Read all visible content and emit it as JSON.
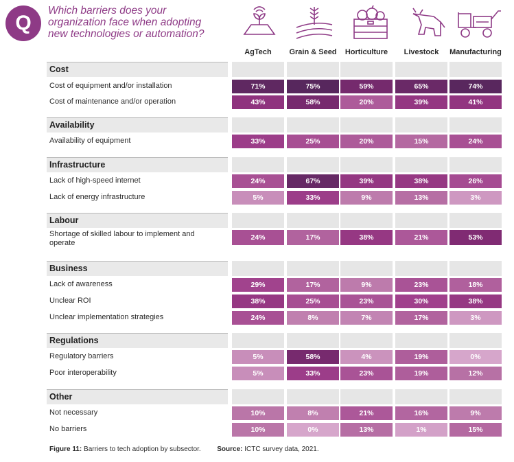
{
  "badge": "Q",
  "question": "Which barriers does your organization face when adopting new technologies or automation?",
  "icons": [
    "agtech-icon",
    "grain-seed-icon",
    "horticulture-icon",
    "livestock-icon",
    "manufacturing-icon"
  ],
  "colors": {
    "accent": "#8e3a86",
    "stripe": "#e6e6e6"
  },
  "footer": {
    "figure_label": "Figure 11:",
    "figure_text": "Barriers to tech adoption by subsector.",
    "source_label": "Source:",
    "source_text": "ICTC survey data, 2021."
  },
  "chart_data": {
    "type": "table",
    "title": "Which barriers does your organization face when adopting new technologies or automation?",
    "columns": [
      "AgTech",
      "Grain & Seed",
      "Horticulture",
      "Livestock",
      "Manufacturing"
    ],
    "groups": [
      {
        "name": "Cost",
        "rows": [
          {
            "label": "Cost of equipment and/or installation",
            "values": [
              71,
              75,
              59,
              65,
              74
            ]
          },
          {
            "label": "Cost of maintenance and/or operation",
            "values": [
              43,
              58,
              20,
              39,
              41
            ]
          }
        ]
      },
      {
        "name": "Availability",
        "rows": [
          {
            "label": "Availability of equipment",
            "values": [
              33,
              25,
              20,
              15,
              24
            ]
          }
        ]
      },
      {
        "name": "Infrastructure",
        "rows": [
          {
            "label": "Lack of high-speed internet",
            "values": [
              24,
              67,
              39,
              38,
              26
            ]
          },
          {
            "label": "Lack of energy infrastructure",
            "values": [
              5,
              33,
              9,
              13,
              3
            ]
          }
        ]
      },
      {
        "name": "Labour",
        "rows": [
          {
            "label": "Shortage of skilled labour to implement and operate",
            "values": [
              24,
              17,
              38,
              21,
              53
            ]
          }
        ]
      },
      {
        "name": "Business",
        "rows": [
          {
            "label": "Lack of awareness",
            "values": [
              29,
              17,
              9,
              23,
              18
            ]
          },
          {
            "label": "Unclear ROI",
            "values": [
              38,
              25,
              23,
              30,
              38
            ]
          },
          {
            "label": "Unclear implementation strategies",
            "values": [
              24,
              8,
              7,
              17,
              3
            ]
          }
        ]
      },
      {
        "name": "Regulations",
        "rows": [
          {
            "label": "Regulatory barriers",
            "values": [
              5,
              58,
              4,
              19,
              0
            ]
          },
          {
            "label": "Poor interoperability",
            "values": [
              5,
              33,
              23,
              19,
              12
            ]
          }
        ]
      },
      {
        "name": "Other",
        "rows": [
          {
            "label": "Not necessary",
            "values": [
              10,
              8,
              21,
              16,
              9
            ]
          },
          {
            "label": "No barriers",
            "values": [
              10,
              0,
              13,
              1,
              15
            ]
          }
        ]
      }
    ]
  }
}
